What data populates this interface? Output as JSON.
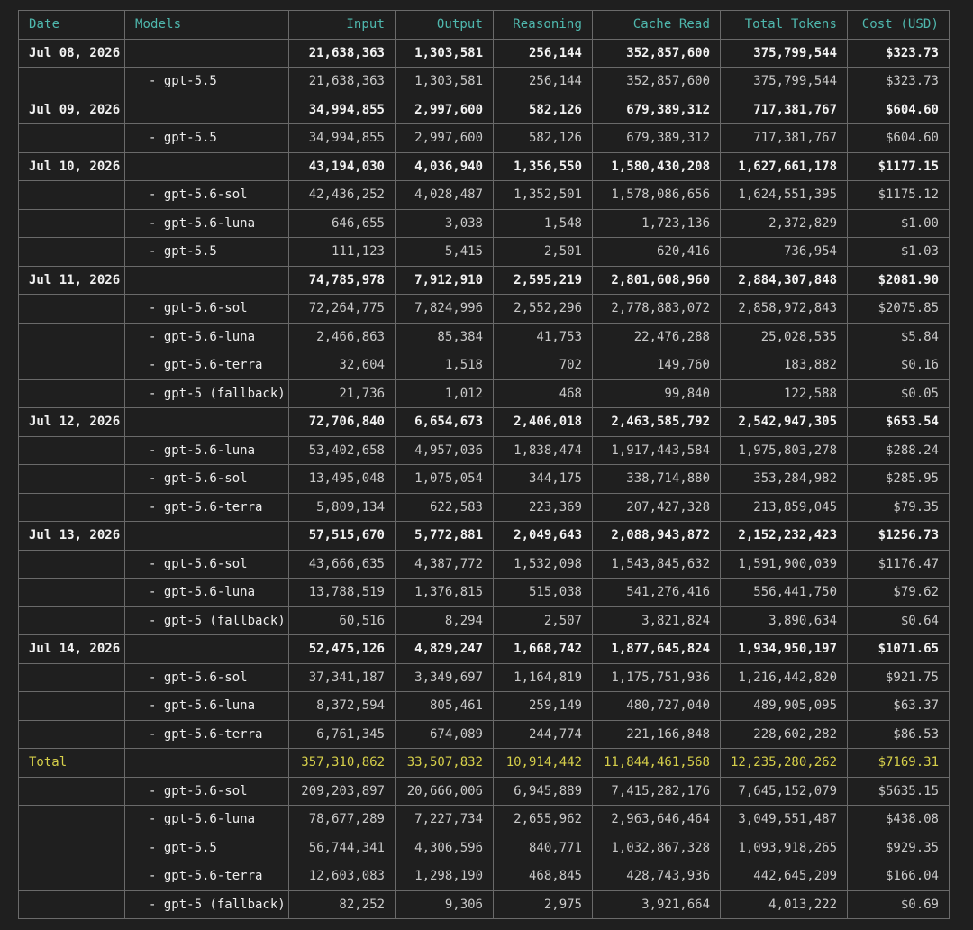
{
  "headers": [
    "Date",
    "Models",
    "Input",
    "Output",
    "Reasoning",
    "Cache Read",
    "Total Tokens",
    "Cost (USD)"
  ],
  "colors": {
    "background": "#1f1f1f",
    "header_text": "#4fb8ae",
    "grid_lines": "#6a6a6a",
    "date_row_text": "#f2f2f2",
    "model_row_text": "#c9c9c9",
    "total_row_text": "#d6cf4a"
  },
  "rows": [
    {
      "type": "date",
      "date": "Jul 08, 2026",
      "model": "",
      "cells": [
        "21,638,363",
        "1,303,581",
        "256,144",
        "352,857,600",
        "375,799,544",
        "$323.73"
      ]
    },
    {
      "type": "model",
      "date": "",
      "model": "- gpt-5.5",
      "cells": [
        "21,638,363",
        "1,303,581",
        "256,144",
        "352,857,600",
        "375,799,544",
        "$323.73"
      ]
    },
    {
      "type": "date",
      "date": "Jul 09, 2026",
      "model": "",
      "cells": [
        "34,994,855",
        "2,997,600",
        "582,126",
        "679,389,312",
        "717,381,767",
        "$604.60"
      ]
    },
    {
      "type": "model",
      "date": "",
      "model": "- gpt-5.5",
      "cells": [
        "34,994,855",
        "2,997,600",
        "582,126",
        "679,389,312",
        "717,381,767",
        "$604.60"
      ]
    },
    {
      "type": "date",
      "date": "Jul 10, 2026",
      "model": "",
      "cells": [
        "43,194,030",
        "4,036,940",
        "1,356,550",
        "1,580,430,208",
        "1,627,661,178",
        "$1177.15"
      ]
    },
    {
      "type": "model",
      "date": "",
      "model": "- gpt-5.6-sol",
      "cells": [
        "42,436,252",
        "4,028,487",
        "1,352,501",
        "1,578,086,656",
        "1,624,551,395",
        "$1175.12"
      ]
    },
    {
      "type": "model",
      "date": "",
      "model": "- gpt-5.6-luna",
      "cells": [
        "646,655",
        "3,038",
        "1,548",
        "1,723,136",
        "2,372,829",
        "$1.00"
      ]
    },
    {
      "type": "model",
      "date": "",
      "model": "- gpt-5.5",
      "cells": [
        "111,123",
        "5,415",
        "2,501",
        "620,416",
        "736,954",
        "$1.03"
      ]
    },
    {
      "type": "date",
      "date": "Jul 11, 2026",
      "model": "",
      "cells": [
        "74,785,978",
        "7,912,910",
        "2,595,219",
        "2,801,608,960",
        "2,884,307,848",
        "$2081.90"
      ]
    },
    {
      "type": "model",
      "date": "",
      "model": "- gpt-5.6-sol",
      "cells": [
        "72,264,775",
        "7,824,996",
        "2,552,296",
        "2,778,883,072",
        "2,858,972,843",
        "$2075.85"
      ]
    },
    {
      "type": "model",
      "date": "",
      "model": "- gpt-5.6-luna",
      "cells": [
        "2,466,863",
        "85,384",
        "41,753",
        "22,476,288",
        "25,028,535",
        "$5.84"
      ]
    },
    {
      "type": "model",
      "date": "",
      "model": "- gpt-5.6-terra",
      "cells": [
        "32,604",
        "1,518",
        "702",
        "149,760",
        "183,882",
        "$0.16"
      ]
    },
    {
      "type": "model",
      "date": "",
      "model": "- gpt-5 (fallback)",
      "cells": [
        "21,736",
        "1,012",
        "468",
        "99,840",
        "122,588",
        "$0.05"
      ]
    },
    {
      "type": "date",
      "date": "Jul 12, 2026",
      "model": "",
      "cells": [
        "72,706,840",
        "6,654,673",
        "2,406,018",
        "2,463,585,792",
        "2,542,947,305",
        "$653.54"
      ]
    },
    {
      "type": "model",
      "date": "",
      "model": "- gpt-5.6-luna",
      "cells": [
        "53,402,658",
        "4,957,036",
        "1,838,474",
        "1,917,443,584",
        "1,975,803,278",
        "$288.24"
      ]
    },
    {
      "type": "model",
      "date": "",
      "model": "- gpt-5.6-sol",
      "cells": [
        "13,495,048",
        "1,075,054",
        "344,175",
        "338,714,880",
        "353,284,982",
        "$285.95"
      ]
    },
    {
      "type": "model",
      "date": "",
      "model": "- gpt-5.6-terra",
      "cells": [
        "5,809,134",
        "622,583",
        "223,369",
        "207,427,328",
        "213,859,045",
        "$79.35"
      ]
    },
    {
      "type": "date",
      "date": "Jul 13, 2026",
      "model": "",
      "cells": [
        "57,515,670",
        "5,772,881",
        "2,049,643",
        "2,088,943,872",
        "2,152,232,423",
        "$1256.73"
      ]
    },
    {
      "type": "model",
      "date": "",
      "model": "- gpt-5.6-sol",
      "cells": [
        "43,666,635",
        "4,387,772",
        "1,532,098",
        "1,543,845,632",
        "1,591,900,039",
        "$1176.47"
      ]
    },
    {
      "type": "model",
      "date": "",
      "model": "- gpt-5.6-luna",
      "cells": [
        "13,788,519",
        "1,376,815",
        "515,038",
        "541,276,416",
        "556,441,750",
        "$79.62"
      ]
    },
    {
      "type": "model",
      "date": "",
      "model": "- gpt-5 (fallback)",
      "cells": [
        "60,516",
        "8,294",
        "2,507",
        "3,821,824",
        "3,890,634",
        "$0.64"
      ]
    },
    {
      "type": "date",
      "date": "Jul 14, 2026",
      "model": "",
      "cells": [
        "52,475,126",
        "4,829,247",
        "1,668,742",
        "1,877,645,824",
        "1,934,950,197",
        "$1071.65"
      ]
    },
    {
      "type": "model",
      "date": "",
      "model": "- gpt-5.6-sol",
      "cells": [
        "37,341,187",
        "3,349,697",
        "1,164,819",
        "1,175,751,936",
        "1,216,442,820",
        "$921.75"
      ]
    },
    {
      "type": "model",
      "date": "",
      "model": "- gpt-5.6-luna",
      "cells": [
        "8,372,594",
        "805,461",
        "259,149",
        "480,727,040",
        "489,905,095",
        "$63.37"
      ]
    },
    {
      "type": "model",
      "date": "",
      "model": "- gpt-5.6-terra",
      "cells": [
        "6,761,345",
        "674,089",
        "244,774",
        "221,166,848",
        "228,602,282",
        "$86.53"
      ]
    },
    {
      "type": "total",
      "date": "Total",
      "model": "",
      "cells": [
        "357,310,862",
        "33,507,832",
        "10,914,442",
        "11,844,461,568",
        "12,235,280,262",
        "$7169.31"
      ]
    },
    {
      "type": "model",
      "date": "",
      "model": "- gpt-5.6-sol",
      "cells": [
        "209,203,897",
        "20,666,006",
        "6,945,889",
        "7,415,282,176",
        "7,645,152,079",
        "$5635.15"
      ]
    },
    {
      "type": "model",
      "date": "",
      "model": "- gpt-5.6-luna",
      "cells": [
        "78,677,289",
        "7,227,734",
        "2,655,962",
        "2,963,646,464",
        "3,049,551,487",
        "$438.08"
      ]
    },
    {
      "type": "model",
      "date": "",
      "model": "- gpt-5.5",
      "cells": [
        "56,744,341",
        "4,306,596",
        "840,771",
        "1,032,867,328",
        "1,093,918,265",
        "$929.35"
      ]
    },
    {
      "type": "model",
      "date": "",
      "model": "- gpt-5.6-terra",
      "cells": [
        "12,603,083",
        "1,298,190",
        "468,845",
        "428,743,936",
        "442,645,209",
        "$166.04"
      ]
    },
    {
      "type": "model",
      "date": "",
      "model": "- gpt-5 (fallback)",
      "cells": [
        "82,252",
        "9,306",
        "2,975",
        "3,921,664",
        "4,013,222",
        "$0.69"
      ]
    }
  ]
}
